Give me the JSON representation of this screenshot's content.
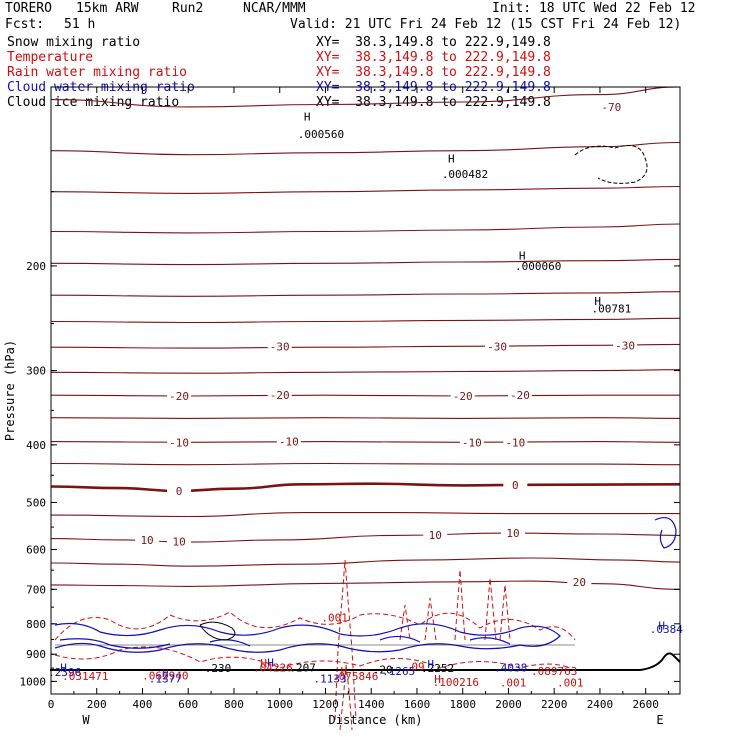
{
  "header": {
    "model": "TORERO",
    "resolution": "15km ARW",
    "run": "Run2",
    "org": "NCAR/MMM",
    "init": "Init: 18 UTC Wed 22 Feb 12",
    "fcst_label": "Fcst:",
    "fcst_value": "51 h",
    "valid": "Valid: 21 UTC Fri 24 Feb 12 (15 CST Fri 24 Feb 12)"
  },
  "fields": [
    {
      "name": "Snow mixing ratio",
      "color": "#000000",
      "xy": "XY=  38.3,149.8 to 222.9,149.8"
    },
    {
      "name": "Temperature",
      "color": "#d01010",
      "xy": "XY=  38.3,149.8 to 222.9,149.8"
    },
    {
      "name": "Rain water mixing ratio",
      "color": "#d01010",
      "xy": "XY=  38.3,149.8 to 222.9,149.8"
    },
    {
      "name": "Cloud water mixing ratio",
      "color": "#1010c0",
      "xy": "XY=  38.3,149.8 to 222.9,149.8"
    },
    {
      "name": "Cloud ice mixing ratio",
      "color": "#000000",
      "xy": "XY=  38.3,149.8 to 222.9,149.8"
    }
  ],
  "chart_data": {
    "type": "cross-section contour",
    "xlabel": "Distance (km)",
    "ylabel": "Pressure (hPa)",
    "xlim": [
      0,
      2750
    ],
    "ylim": [
      1050,
      100
    ],
    "x_ticks": [
      0,
      200,
      400,
      600,
      800,
      1000,
      1200,
      1400,
      1600,
      1800,
      2000,
      2200,
      2400,
      2600
    ],
    "y_ticks": [
      200,
      300,
      400,
      500,
      600,
      700,
      800,
      900,
      1000
    ],
    "x_end_labels": {
      "left": "W",
      "right": "E"
    },
    "temperature_contours": [
      {
        "temp": -70,
        "points": [
          [
            0,
            105
          ],
          [
            600,
            108
          ],
          [
            1200,
            107
          ],
          [
            1800,
            106
          ],
          [
            2400,
            103
          ],
          [
            2750,
            100
          ]
        ]
      },
      {
        "temp": -60,
        "points": [
          [
            0,
            128
          ],
          [
            600,
            130
          ],
          [
            1200,
            129
          ],
          [
            1800,
            128
          ],
          [
            2400,
            126
          ],
          [
            2750,
            124
          ]
        ]
      },
      {
        "temp": -55,
        "points": [
          [
            0,
            150
          ],
          [
            600,
            151
          ],
          [
            1200,
            150
          ],
          [
            1800,
            149
          ],
          [
            2400,
            148
          ],
          [
            2750,
            147
          ]
        ]
      },
      {
        "temp": -50,
        "points": [
          [
            0,
            175
          ],
          [
            600,
            176
          ],
          [
            1200,
            175
          ],
          [
            1800,
            174
          ],
          [
            2400,
            172
          ],
          [
            2750,
            170
          ]
        ]
      },
      {
        "temp": -45,
        "points": [
          [
            0,
            198
          ],
          [
            600,
            199
          ],
          [
            1200,
            198
          ],
          [
            1800,
            197
          ],
          [
            2400,
            196
          ],
          [
            2750,
            195
          ]
        ]
      },
      {
        "temp": -40,
        "points": [
          [
            0,
            224
          ],
          [
            600,
            225
          ],
          [
            1200,
            224
          ],
          [
            1800,
            223
          ],
          [
            2400,
            222
          ],
          [
            2750,
            221
          ]
        ]
      },
      {
        "temp": -35,
        "points": [
          [
            0,
            248
          ],
          [
            600,
            249
          ],
          [
            1200,
            248
          ],
          [
            1800,
            247
          ],
          [
            2400,
            246
          ],
          [
            2750,
            245
          ]
        ]
      },
      {
        "temp": -30,
        "points": [
          [
            0,
            274
          ],
          [
            600,
            275
          ],
          [
            1200,
            274
          ],
          [
            1800,
            273
          ],
          [
            2400,
            272
          ],
          [
            2750,
            271
          ]
        ]
      },
      {
        "temp": -25,
        "points": [
          [
            0,
            302
          ],
          [
            600,
            303
          ],
          [
            1200,
            302
          ],
          [
            1800,
            301
          ],
          [
            2400,
            300
          ],
          [
            2750,
            299
          ]
        ]
      },
      {
        "temp": -20,
        "points": [
          [
            0,
            330
          ],
          [
            600,
            331
          ],
          [
            1200,
            330
          ],
          [
            1800,
            331
          ],
          [
            2400,
            330
          ],
          [
            2750,
            330
          ]
        ]
      },
      {
        "temp": -15,
        "points": [
          [
            0,
            360
          ],
          [
            600,
            361
          ],
          [
            1200,
            360
          ],
          [
            1800,
            361
          ],
          [
            2400,
            360
          ],
          [
            2750,
            361
          ]
        ]
      },
      {
        "temp": -10,
        "points": [
          [
            0,
            395
          ],
          [
            600,
            396
          ],
          [
            1200,
            395
          ],
          [
            1800,
            396
          ],
          [
            2400,
            395
          ],
          [
            2750,
            396
          ]
        ]
      },
      {
        "temp": -5,
        "points": [
          [
            0,
            430
          ],
          [
            600,
            432
          ],
          [
            1200,
            430
          ],
          [
            1800,
            431
          ],
          [
            2400,
            431
          ],
          [
            2750,
            432
          ]
        ]
      },
      {
        "temp": 0,
        "points": [
          [
            0,
            470
          ],
          [
            300,
            473
          ],
          [
            550,
            478
          ],
          [
            800,
            474
          ],
          [
            1100,
            466
          ],
          [
            1400,
            465
          ],
          [
            1800,
            468
          ],
          [
            2100,
            467
          ],
          [
            2750,
            466
          ]
        ]
      },
      {
        "temp": 5,
        "points": [
          [
            0,
            525
          ],
          [
            600,
            528
          ],
          [
            1100,
            520
          ],
          [
            1500,
            520
          ],
          [
            2000,
            522
          ],
          [
            2750,
            522
          ]
        ]
      },
      {
        "temp": 10,
        "points": [
          [
            0,
            575
          ],
          [
            300,
            578
          ],
          [
            600,
            583
          ],
          [
            1000,
            578
          ],
          [
            1500,
            568
          ],
          [
            2000,
            563
          ],
          [
            2400,
            565
          ],
          [
            2750,
            568
          ]
        ]
      },
      {
        "temp": 15,
        "points": [
          [
            0,
            632
          ],
          [
            300,
            635
          ],
          [
            600,
            640
          ],
          [
            1100,
            635
          ],
          [
            1600,
            625
          ],
          [
            2100,
            620
          ],
          [
            2500,
            625
          ],
          [
            2750,
            630
          ]
        ]
      },
      {
        "temp": 20,
        "points": [
          [
            0,
            688
          ],
          [
            300,
            690
          ],
          [
            600,
            692
          ],
          [
            1200,
            684
          ],
          [
            1800,
            680
          ],
          [
            2100,
            678
          ],
          [
            2400,
            685
          ],
          [
            2750,
            700
          ]
        ]
      }
    ],
    "temperature_labels": [
      {
        "text": "-70",
        "x": 2450,
        "p": 108
      },
      {
        "text": "-30",
        "x": 1000,
        "p": 273
      },
      {
        "text": "-30",
        "x": 1950,
        "p": 273
      },
      {
        "text": "-30",
        "x": 2510,
        "p": 272
      },
      {
        "text": "-20",
        "x": 560,
        "p": 331
      },
      {
        "text": "-20",
        "x": 1000,
        "p": 330
      },
      {
        "text": "-20",
        "x": 1800,
        "p": 331
      },
      {
        "text": "-20",
        "x": 2050,
        "p": 330
      },
      {
        "text": "-10",
        "x": 560,
        "p": 396
      },
      {
        "text": "-10",
        "x": 1040,
        "p": 395
      },
      {
        "text": "-10",
        "x": 1840,
        "p": 396
      },
      {
        "text": "-10",
        "x": 2030,
        "p": 396
      },
      {
        "text": "0",
        "x": 560,
        "p": 478
      },
      {
        "text": "0",
        "x": 2030,
        "p": 467
      },
      {
        "text": "10",
        "x": 420,
        "p": 578
      },
      {
        "text": "10",
        "x": 560,
        "p": 582
      },
      {
        "text": "10",
        "x": 1680,
        "p": 567
      },
      {
        "text": "10",
        "x": 2020,
        "p": 563
      },
      {
        "text": "20",
        "x": 2310,
        "p": 680
      }
    ],
    "maxima_labels": [
      {
        "text": "H",
        "x": 1120,
        "p": 112,
        "color": "#000000"
      },
      {
        "text": ".000560",
        "x": 1180,
        "p": 120,
        "color": "#000000"
      },
      {
        "text": "H",
        "x": 1750,
        "p": 132,
        "color": "#000000"
      },
      {
        "text": ".000482",
        "x": 1810,
        "p": 140,
        "color": "#000000"
      },
      {
        "text": "H",
        "x": 2060,
        "p": 192,
        "color": "#000000"
      },
      {
        "text": ".000060",
        "x": 2130,
        "p": 200,
        "color": "#000000"
      },
      {
        "text": "H",
        "x": 2390,
        "p": 229,
        "color": "#000000"
      },
      {
        "text": ".00781",
        "x": 2450,
        "p": 236,
        "color": "#000000"
      },
      {
        "text": "H",
        "x": 2670,
        "p": 805,
        "color": "#1010c0"
      },
      {
        "text": ".0384",
        "x": 2690,
        "p": 816,
        "color": "#1010c0"
      },
      {
        "text": "H",
        "x": 55,
        "p": 948,
        "color": "#1010c0"
      },
      {
        "text": ".2396",
        "x": 60,
        "p": 965,
        "color": "#1010c0"
      },
      {
        "text": ".031471",
        "x": 150,
        "p": 980,
        "color": "#d01010"
      },
      {
        "text": "H",
        "x": 500,
        "p": 968,
        "color": "#1010c0"
      },
      {
        "text": ".062940",
        "x": 500,
        "p": 977,
        "color": "#d01010"
      },
      {
        "text": ".1377",
        "x": 500,
        "p": 989,
        "color": "#1010c0"
      },
      {
        "text": ".230",
        "x": 730,
        "p": 950,
        "color": "#000000"
      },
      {
        "text": "H",
        "x": 930,
        "p": 932,
        "color": "#d01010"
      },
      {
        "text": "H",
        "x": 960,
        "p": 930,
        "color": "#1010c0"
      },
      {
        "text": ".04226",
        "x": 970,
        "p": 948,
        "color": "#d01010"
      },
      {
        "text": ".207",
        "x": 1100,
        "p": 948,
        "color": "#000000"
      },
      {
        "text": "H",
        "x": 1280,
        "p": 960,
        "color": "#d01010"
      },
      {
        "text": ".075846",
        "x": 1330,
        "p": 979,
        "color": "#d01010"
      },
      {
        "text": ".1133",
        "x": 1220,
        "p": 989,
        "color": "#1010c0"
      },
      {
        "text": ".20",
        "x": 1450,
        "p": 955,
        "color": "#000000"
      },
      {
        "text": ".1265",
        "x": 1520,
        "p": 961,
        "color": "#1010c0"
      },
      {
        "text": ".09",
        "x": 1590,
        "p": 943,
        "color": "#d01010"
      },
      {
        "text": ".2252",
        "x": 1690,
        "p": 950,
        "color": "#000000"
      },
      {
        "text": "H",
        "x": 1660,
        "p": 935,
        "color": "#1010c0"
      },
      {
        "text": "H",
        "x": 1690,
        "p": 990,
        "color": "#d01010"
      },
      {
        "text": ".100216",
        "x": 1770,
        "p": 1002,
        "color": "#d01010"
      },
      {
        "text": ".4038",
        "x": 2010,
        "p": 947,
        "color": "#1010c0"
      },
      {
        "text": ".089763",
        "x": 2200,
        "p": 960,
        "color": "#d01010"
      },
      {
        "text": ".001",
        "x": 1240,
        "p": 780,
        "color": "#d01010"
      },
      {
        "text": ".001",
        "x": 2020,
        "p": 1005,
        "color": "#d01010"
      },
      {
        "text": ".001",
        "x": 2270,
        "p": 1005,
        "color": "#d01010"
      }
    ]
  }
}
